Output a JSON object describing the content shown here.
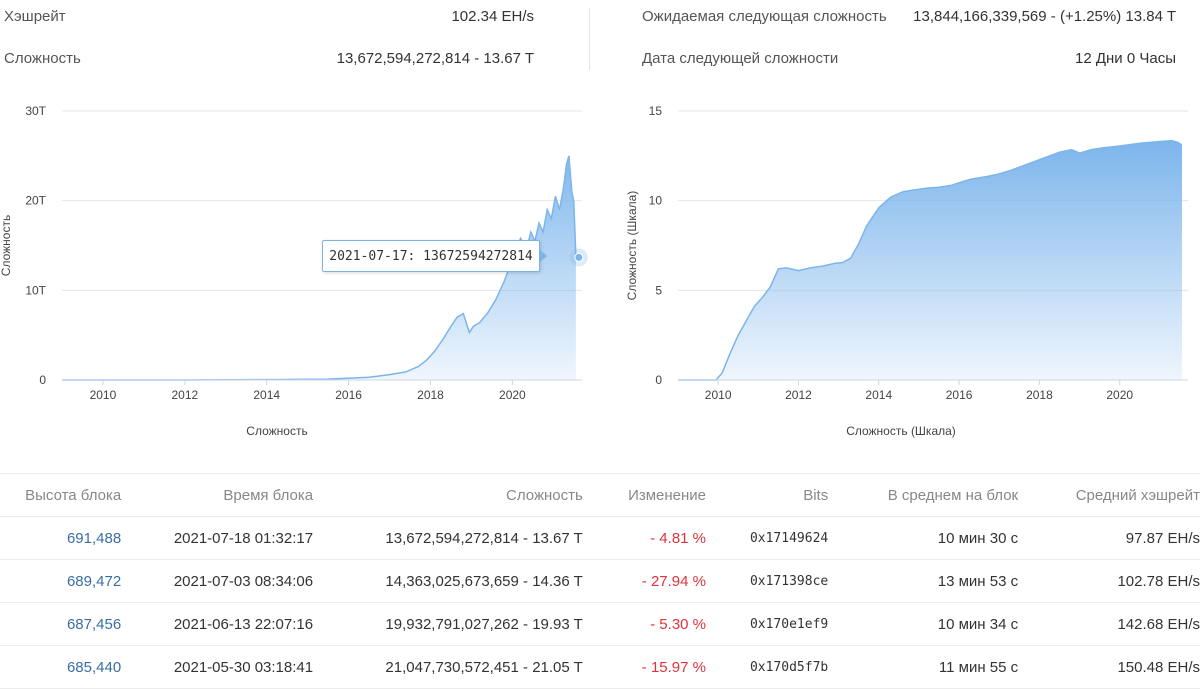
{
  "stats": {
    "hashrate_label": "Хэшрейт",
    "hashrate_value": "102.34 EH/s",
    "difficulty_label": "Сложность",
    "difficulty_value": "13,672,594,272,814 - 13.67 T",
    "next_difficulty_label": "Ожидаемая следующая сложность",
    "next_difficulty_value": "13,844,166,339,569 - (+1.25%) 13.84 T",
    "next_date_label": "Дата следующей сложности",
    "next_date_value": "12 Дни 0 Часы"
  },
  "tooltip": {
    "text": "2021-07-17: 13672594272814"
  },
  "chart_data": [
    {
      "type": "area",
      "ylabel": "Сложность",
      "xlabel": "Сложность",
      "y_tick_labels": [
        "0",
        "10T",
        "20T",
        "30T"
      ],
      "x_tick_labels": [
        "2010",
        "2012",
        "2014",
        "2016",
        "2018",
        "2020"
      ],
      "xlim": [
        2009.0,
        2021.7
      ],
      "ylim": [
        0,
        30
      ],
      "y_unit": "T",
      "grid": true,
      "color": "#7cb5ec",
      "x": [
        2009.0,
        2012.0,
        2014.0,
        2015.5,
        2016.5,
        2017.0,
        2017.4,
        2017.7,
        2017.9,
        2018.1,
        2018.3,
        2018.5,
        2018.65,
        2018.8,
        2018.95,
        2019.05,
        2019.2,
        2019.4,
        2019.6,
        2019.8,
        2020.0,
        2020.2,
        2020.35,
        2020.45,
        2020.55,
        2020.65,
        2020.75,
        2020.85,
        2020.95,
        2021.05,
        2021.15,
        2021.25,
        2021.32,
        2021.38,
        2021.45,
        2021.5,
        2021.55
      ],
      "y": [
        0,
        0.0,
        0.05,
        0.1,
        0.3,
        0.6,
        0.9,
        1.5,
        2.2,
        3.2,
        4.5,
        6.0,
        7.0,
        7.4,
        5.3,
        6.0,
        6.4,
        7.5,
        9.0,
        11.0,
        13.5,
        15.8,
        14.6,
        16.5,
        15.5,
        17.5,
        16.5,
        19.0,
        18.0,
        20.5,
        19.0,
        21.5,
        24.0,
        25.0,
        21.0,
        19.9,
        13.67
      ]
    },
    {
      "type": "area",
      "ylabel": "Сложность (Шкала)",
      "xlabel": "Сложность (Шкала)",
      "y_tick_labels": [
        "0",
        "5",
        "10",
        "15"
      ],
      "x_tick_labels": [
        "2010",
        "2012",
        "2014",
        "2016",
        "2018",
        "2020"
      ],
      "xlim": [
        2009.0,
        2021.7
      ],
      "ylim": [
        0,
        15
      ],
      "grid": true,
      "color": "#7cb5ec",
      "x": [
        2009.0,
        2009.95,
        2010.1,
        2010.3,
        2010.5,
        2010.7,
        2010.9,
        2011.1,
        2011.3,
        2011.5,
        2011.7,
        2012.0,
        2012.3,
        2012.6,
        2012.9,
        2013.1,
        2013.3,
        2013.5,
        2013.7,
        2014.0,
        2014.3,
        2014.6,
        2014.9,
        2015.2,
        2015.5,
        2015.8,
        2016.0,
        2016.3,
        2016.7,
        2017.0,
        2017.3,
        2017.6,
        2017.9,
        2018.2,
        2018.5,
        2018.8,
        2019.0,
        2019.3,
        2019.6,
        2020.0,
        2020.5,
        2021.0,
        2021.3,
        2021.45,
        2021.55
      ],
      "y": [
        0,
        0,
        0.4,
        1.5,
        2.5,
        3.3,
        4.1,
        4.6,
        5.2,
        6.2,
        6.25,
        6.1,
        6.25,
        6.35,
        6.5,
        6.55,
        6.8,
        7.6,
        8.6,
        9.6,
        10.2,
        10.5,
        10.6,
        10.7,
        10.75,
        10.85,
        11.0,
        11.2,
        11.35,
        11.5,
        11.7,
        11.95,
        12.2,
        12.45,
        12.7,
        12.85,
        12.65,
        12.85,
        12.95,
        13.05,
        13.2,
        13.3,
        13.35,
        13.25,
        13.1
      ]
    }
  ],
  "table": {
    "headers": [
      "Высота блока",
      "Время блока",
      "Сложность",
      "Изменение",
      "Bits",
      "В среднем на блок",
      "Средний хэшрейт"
    ],
    "rows": [
      [
        "691,488",
        "2021-07-18 01:32:17",
        "13,672,594,272,814 - 13.67 T",
        "- 4.81 %",
        "0x17149624",
        "10 мин 30 с",
        "97.87 EH/s"
      ],
      [
        "689,472",
        "2021-07-03 08:34:06",
        "14,363,025,673,659 - 14.36 T",
        "- 27.94 %",
        "0x171398ce",
        "13 мин 53 с",
        "102.78 EH/s"
      ],
      [
        "687,456",
        "2021-06-13 22:07:16",
        "19,932,791,027,262 - 19.93 T",
        "- 5.30 %",
        "0x170e1ef9",
        "10 мин 34 с",
        "142.68 EH/s"
      ],
      [
        "685,440",
        "2021-05-30 03:18:41",
        "21,047,730,572,451 - 21.05 T",
        "- 15.97 %",
        "0x170d5f7b",
        "11 мин 55 с",
        "150.48 EH/s"
      ]
    ]
  },
  "colors": {
    "accent": "#7cb5ec",
    "negative": "#e0323c",
    "link": "#3a6ea5"
  }
}
